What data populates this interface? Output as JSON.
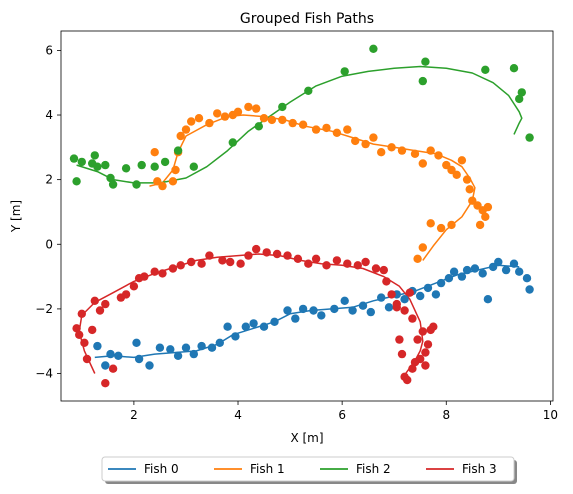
{
  "chart_data": {
    "type": "scatter",
    "title": "Grouped Fish Paths",
    "xlabel": "X [m]",
    "ylabel": "Y [m]",
    "xlim": [
      0.6,
      10.05
    ],
    "ylim": [
      -4.85,
      6.6
    ],
    "xticks": [
      2,
      4,
      6,
      8,
      10
    ],
    "yticks": [
      -4,
      -2,
      0,
      2,
      4,
      6
    ],
    "grid": false,
    "legend": {
      "placement": "bottom-center",
      "columns": 4
    },
    "series": [
      {
        "name": "Fish 0",
        "color": "#1f77b4",
        "line": [
          [
            1.25,
            -3.5
          ],
          [
            1.6,
            -3.45
          ],
          [
            2.0,
            -3.5
          ],
          [
            2.4,
            -3.4
          ],
          [
            2.8,
            -3.35
          ],
          [
            3.2,
            -3.3
          ],
          [
            3.6,
            -3.1
          ],
          [
            3.9,
            -2.8
          ],
          [
            4.3,
            -2.6
          ],
          [
            4.7,
            -2.4
          ],
          [
            5.0,
            -2.15
          ],
          [
            5.4,
            -2.05
          ],
          [
            5.8,
            -2.0
          ],
          [
            6.2,
            -1.95
          ],
          [
            6.6,
            -1.75
          ],
          [
            7.0,
            -1.6
          ],
          [
            7.4,
            -1.45
          ],
          [
            7.8,
            -1.2
          ],
          [
            8.2,
            -0.95
          ],
          [
            8.6,
            -0.8
          ],
          [
            9.0,
            -0.65
          ],
          [
            9.4,
            -0.7
          ]
        ],
        "points": [
          [
            1.3,
            -3.15
          ],
          [
            1.45,
            -3.75
          ],
          [
            1.55,
            -3.4
          ],
          [
            1.7,
            -3.45
          ],
          [
            2.05,
            -3.05
          ],
          [
            2.1,
            -3.55
          ],
          [
            2.3,
            -3.75
          ],
          [
            2.5,
            -3.2
          ],
          [
            2.7,
            -3.25
          ],
          [
            2.85,
            -3.45
          ],
          [
            3.0,
            -3.2
          ],
          [
            3.15,
            -3.4
          ],
          [
            3.3,
            -3.15
          ],
          [
            3.5,
            -3.2
          ],
          [
            3.65,
            -3.05
          ],
          [
            3.8,
            -2.55
          ],
          [
            3.95,
            -2.85
          ],
          [
            4.15,
            -2.55
          ],
          [
            4.3,
            -2.45
          ],
          [
            4.5,
            -2.55
          ],
          [
            4.7,
            -2.4
          ],
          [
            4.95,
            -2.05
          ],
          [
            5.1,
            -2.3
          ],
          [
            5.25,
            -2.0
          ],
          [
            5.45,
            -2.05
          ],
          [
            5.6,
            -2.2
          ],
          [
            5.85,
            -2.0
          ],
          [
            6.05,
            -1.75
          ],
          [
            6.2,
            -2.05
          ],
          [
            6.4,
            -1.9
          ],
          [
            6.55,
            -2.1
          ],
          [
            6.75,
            -1.65
          ],
          [
            6.9,
            -1.95
          ],
          [
            7.05,
            -1.55
          ],
          [
            7.2,
            -1.7
          ],
          [
            7.35,
            -1.45
          ],
          [
            7.5,
            -1.6
          ],
          [
            7.65,
            -1.35
          ],
          [
            7.8,
            -1.55
          ],
          [
            7.9,
            -1.2
          ],
          [
            8.05,
            -1.05
          ],
          [
            8.15,
            -0.85
          ],
          [
            8.3,
            -1.0
          ],
          [
            8.4,
            -0.8
          ],
          [
            8.55,
            -0.75
          ],
          [
            8.7,
            -0.9
          ],
          [
            8.8,
            -1.7
          ],
          [
            8.9,
            -0.7
          ],
          [
            9.0,
            -0.55
          ],
          [
            9.15,
            -0.8
          ],
          [
            9.3,
            -0.6
          ],
          [
            9.4,
            -0.85
          ],
          [
            9.55,
            -1.05
          ],
          [
            9.6,
            -1.4
          ]
        ]
      },
      {
        "name": "Fish 1",
        "color": "#ff7f0e",
        "line": [
          [
            7.55,
            -0.5
          ],
          [
            7.75,
            -0.05
          ],
          [
            8.0,
            0.45
          ],
          [
            8.3,
            0.85
          ],
          [
            8.5,
            1.35
          ],
          [
            8.55,
            1.75
          ],
          [
            8.45,
            2.05
          ],
          [
            8.3,
            2.4
          ],
          [
            8.1,
            2.6
          ],
          [
            7.8,
            2.8
          ],
          [
            7.4,
            2.9
          ],
          [
            7.0,
            3.0
          ],
          [
            6.6,
            3.1
          ],
          [
            6.2,
            3.3
          ],
          [
            5.8,
            3.5
          ],
          [
            5.3,
            3.65
          ],
          [
            4.9,
            3.85
          ],
          [
            4.5,
            3.95
          ],
          [
            4.1,
            4.0
          ],
          [
            3.8,
            3.95
          ],
          [
            3.4,
            3.7
          ],
          [
            3.0,
            3.35
          ],
          [
            2.85,
            2.85
          ],
          [
            2.75,
            2.3
          ],
          [
            2.55,
            1.9
          ],
          [
            2.3,
            1.8
          ]
        ],
        "points": [
          [
            2.4,
            2.85
          ],
          [
            2.45,
            1.95
          ],
          [
            2.55,
            1.8
          ],
          [
            2.75,
            1.95
          ],
          [
            2.8,
            2.3
          ],
          [
            2.85,
            2.85
          ],
          [
            2.9,
            3.35
          ],
          [
            3.0,
            3.55
          ],
          [
            3.1,
            3.8
          ],
          [
            3.25,
            3.9
          ],
          [
            3.45,
            3.75
          ],
          [
            3.6,
            4.05
          ],
          [
            3.75,
            3.95
          ],
          [
            3.9,
            4.0
          ],
          [
            4.0,
            4.1
          ],
          [
            4.2,
            4.25
          ],
          [
            4.35,
            4.2
          ],
          [
            4.5,
            3.9
          ],
          [
            4.65,
            3.85
          ],
          [
            4.85,
            3.85
          ],
          [
            5.05,
            3.75
          ],
          [
            5.25,
            3.7
          ],
          [
            5.5,
            3.55
          ],
          [
            5.7,
            3.6
          ],
          [
            5.9,
            3.45
          ],
          [
            6.1,
            3.55
          ],
          [
            6.25,
            3.2
          ],
          [
            6.45,
            3.1
          ],
          [
            6.6,
            3.3
          ],
          [
            6.75,
            2.85
          ],
          [
            6.95,
            3.0
          ],
          [
            7.15,
            2.9
          ],
          [
            7.4,
            2.8
          ],
          [
            7.55,
            2.5
          ],
          [
            7.7,
            2.9
          ],
          [
            7.85,
            2.75
          ],
          [
            8.0,
            2.45
          ],
          [
            8.1,
            2.3
          ],
          [
            8.2,
            2.15
          ],
          [
            8.3,
            2.6
          ],
          [
            8.4,
            2.0
          ],
          [
            8.45,
            1.7
          ],
          [
            8.5,
            1.35
          ],
          [
            8.6,
            1.2
          ],
          [
            8.7,
            1.05
          ],
          [
            8.75,
            0.85
          ],
          [
            8.8,
            1.15
          ],
          [
            8.65,
            0.6
          ],
          [
            8.1,
            0.6
          ],
          [
            7.9,
            0.5
          ],
          [
            7.7,
            0.65
          ],
          [
            7.45,
            -0.45
          ],
          [
            7.55,
            -0.1
          ]
        ]
      },
      {
        "name": "Fish 2",
        "color": "#2ca02c",
        "line": [
          [
            0.9,
            2.45
          ],
          [
            1.3,
            2.25
          ],
          [
            1.6,
            2.0
          ],
          [
            2.0,
            1.9
          ],
          [
            2.5,
            1.9
          ],
          [
            3.0,
            2.05
          ],
          [
            3.4,
            2.4
          ],
          [
            3.8,
            2.9
          ],
          [
            4.2,
            3.5
          ],
          [
            4.6,
            3.95
          ],
          [
            5.0,
            4.4
          ],
          [
            5.5,
            4.9
          ],
          [
            6.0,
            5.2
          ],
          [
            6.5,
            5.35
          ],
          [
            7.0,
            5.45
          ],
          [
            7.5,
            5.5
          ],
          [
            8.0,
            5.45
          ],
          [
            8.5,
            5.3
          ],
          [
            8.9,
            5.0
          ],
          [
            9.2,
            4.6
          ],
          [
            9.4,
            4.1
          ],
          [
            9.45,
            3.9
          ],
          [
            9.4,
            3.75
          ],
          [
            9.3,
            3.4
          ]
        ],
        "points": [
          [
            0.85,
            2.65
          ],
          [
            0.9,
            1.95
          ],
          [
            1.0,
            2.55
          ],
          [
            1.2,
            2.5
          ],
          [
            1.25,
            2.75
          ],
          [
            1.3,
            2.4
          ],
          [
            1.45,
            2.45
          ],
          [
            1.55,
            2.05
          ],
          [
            1.6,
            1.85
          ],
          [
            1.85,
            2.35
          ],
          [
            2.05,
            1.85
          ],
          [
            2.15,
            2.45
          ],
          [
            2.4,
            2.4
          ],
          [
            2.6,
            2.55
          ],
          [
            2.85,
            2.9
          ],
          [
            3.15,
            2.4
          ],
          [
            3.9,
            3.15
          ],
          [
            4.4,
            3.65
          ],
          [
            4.85,
            4.25
          ],
          [
            5.35,
            4.75
          ],
          [
            6.05,
            5.35
          ],
          [
            6.6,
            6.05
          ],
          [
            7.55,
            5.05
          ],
          [
            7.6,
            5.65
          ],
          [
            8.75,
            5.4
          ],
          [
            9.3,
            5.45
          ],
          [
            9.4,
            4.5
          ],
          [
            9.45,
            4.7
          ],
          [
            9.6,
            3.3
          ]
        ]
      },
      {
        "name": "Fish 3",
        "color": "#d62728",
        "line": [
          [
            1.25,
            -4.0
          ],
          [
            1.05,
            -3.3
          ],
          [
            0.95,
            -2.7
          ],
          [
            1.0,
            -2.2
          ],
          [
            1.25,
            -1.8
          ],
          [
            1.6,
            -1.5
          ],
          [
            2.0,
            -1.15
          ],
          [
            2.4,
            -0.9
          ],
          [
            2.8,
            -0.7
          ],
          [
            3.2,
            -0.5
          ],
          [
            3.6,
            -0.4
          ],
          [
            4.0,
            -0.35
          ],
          [
            4.4,
            -0.3
          ],
          [
            4.8,
            -0.35
          ],
          [
            5.2,
            -0.5
          ],
          [
            5.6,
            -0.6
          ],
          [
            6.0,
            -0.65
          ],
          [
            6.4,
            -0.75
          ],
          [
            6.8,
            -1.0
          ],
          [
            7.1,
            -1.3
          ],
          [
            7.3,
            -1.7
          ],
          [
            7.5,
            -2.4
          ],
          [
            7.55,
            -3.0
          ],
          [
            7.5,
            -3.3
          ],
          [
            7.4,
            -3.6
          ],
          [
            7.2,
            -4.05
          ]
        ],
        "points": [
          [
            0.9,
            -2.6
          ],
          [
            0.95,
            -2.8
          ],
          [
            1.0,
            -2.15
          ],
          [
            1.05,
            -3.05
          ],
          [
            1.1,
            -3.55
          ],
          [
            1.2,
            -2.65
          ],
          [
            1.25,
            -1.75
          ],
          [
            1.35,
            -2.05
          ],
          [
            1.45,
            -1.85
          ],
          [
            1.45,
            -4.3
          ],
          [
            1.6,
            -3.85
          ],
          [
            1.75,
            -1.65
          ],
          [
            1.85,
            -1.55
          ],
          [
            2.0,
            -1.3
          ],
          [
            2.1,
            -1.05
          ],
          [
            2.2,
            -1.0
          ],
          [
            2.4,
            -0.85
          ],
          [
            2.55,
            -0.9
          ],
          [
            2.75,
            -0.75
          ],
          [
            2.9,
            -0.65
          ],
          [
            3.1,
            -0.55
          ],
          [
            3.3,
            -0.6
          ],
          [
            3.45,
            -0.35
          ],
          [
            3.7,
            -0.5
          ],
          [
            3.85,
            -0.55
          ],
          [
            4.05,
            -0.6
          ],
          [
            4.2,
            -0.35
          ],
          [
            4.35,
            -0.15
          ],
          [
            4.55,
            -0.25
          ],
          [
            4.75,
            -0.3
          ],
          [
            4.95,
            -0.35
          ],
          [
            5.15,
            -0.45
          ],
          [
            5.35,
            -0.6
          ],
          [
            5.5,
            -0.45
          ],
          [
            5.7,
            -0.65
          ],
          [
            5.9,
            -0.5
          ],
          [
            6.1,
            -0.6
          ],
          [
            6.3,
            -0.65
          ],
          [
            6.45,
            -0.55
          ],
          [
            6.65,
            -0.75
          ],
          [
            6.8,
            -0.8
          ],
          [
            6.85,
            -1.15
          ],
          [
            6.95,
            -1.55
          ],
          [
            7.05,
            -1.85
          ],
          [
            7.2,
            -2.05
          ],
          [
            7.3,
            -1.5
          ],
          [
            7.35,
            -2.3
          ],
          [
            7.45,
            -2.95
          ],
          [
            7.55,
            -2.7
          ],
          [
            7.6,
            -3.35
          ],
          [
            7.65,
            -3.1
          ],
          [
            7.7,
            -2.65
          ],
          [
            7.75,
            -2.55
          ],
          [
            7.5,
            -3.55
          ],
          [
            7.6,
            -3.75
          ],
          [
            7.4,
            -3.65
          ],
          [
            7.35,
            -3.85
          ],
          [
            7.2,
            -4.1
          ],
          [
            7.25,
            -4.2
          ],
          [
            7.1,
            -2.95
          ],
          [
            7.15,
            -3.4
          ],
          [
            7.05,
            -1.95
          ]
        ]
      }
    ]
  }
}
